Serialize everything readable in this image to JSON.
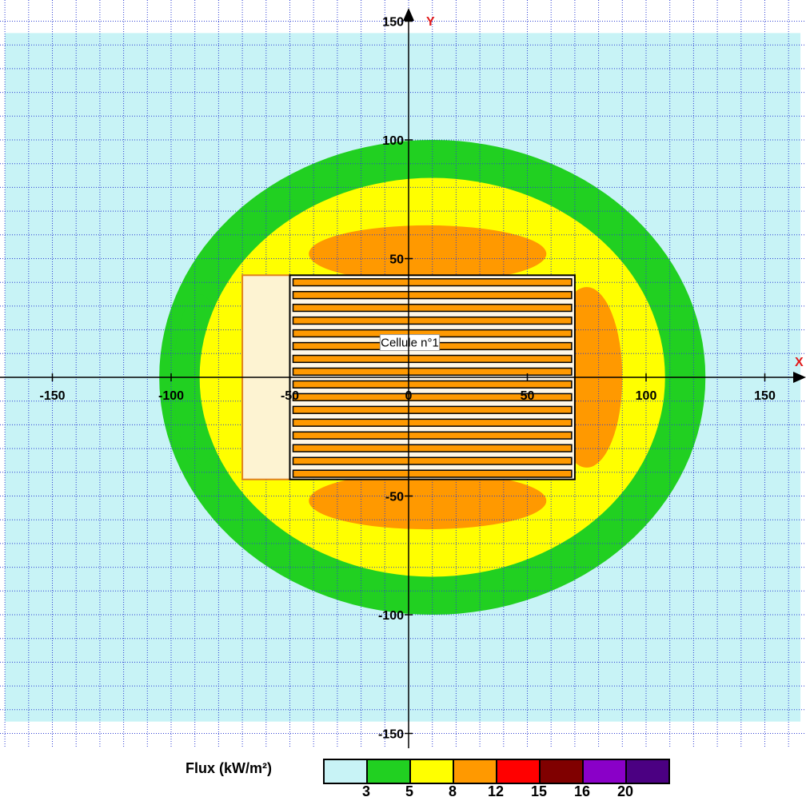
{
  "chart_data": {
    "type": "heatmap",
    "title": "",
    "x_axis": {
      "name": "X",
      "range": [
        -170,
        165
      ],
      "ticks": [
        -150,
        -100,
        -50,
        0,
        50,
        100,
        150
      ],
      "grid_step": 10
    },
    "y_axis": {
      "name": "Y",
      "range": [
        -165,
        158
      ],
      "ticks": [
        150,
        100,
        50,
        -50,
        -100,
        -150
      ],
      "grid_step": 10
    },
    "grid": true,
    "cell": {
      "label": "Cellule n°1",
      "extent_x": [
        -50,
        70
      ],
      "extent_y": [
        -43,
        43
      ],
      "annex_extent_x": [
        -70,
        -50
      ],
      "rack_rows": 16
    },
    "flux_zones": [
      {
        "threshold": 3,
        "color": "#c8f3f6",
        "extent_x": [
          -170,
          165
        ],
        "extent_y": [
          -145,
          145
        ]
      },
      {
        "threshold": 5,
        "color": "#21d021",
        "center": [
          10,
          0
        ],
        "radius_x": 115,
        "radius_y": 100
      },
      {
        "threshold": 8,
        "color": "#ffff00",
        "center": [
          10,
          0
        ],
        "radius_x": 98,
        "radius_y": 84
      },
      {
        "threshold": 12,
        "color": "#ff9900",
        "zones": "top, bottom and right lobes"
      }
    ],
    "legend": {
      "title": "Flux (kW/m²)",
      "colors": [
        "#c8f3f6",
        "#21d021",
        "#ffff00",
        "#ff9900",
        "#ff0000",
        "#800000",
        "#8a00c8",
        "#4b0082"
      ],
      "labels": [
        "3",
        "5",
        "8",
        "12",
        "15",
        "16",
        "20"
      ]
    }
  }
}
